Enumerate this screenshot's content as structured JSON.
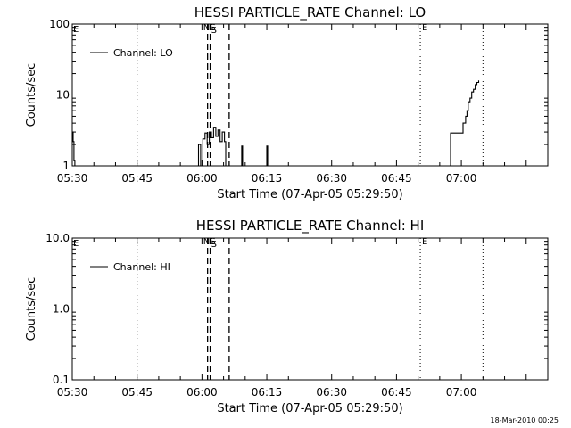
{
  "footer": {
    "timestamp": "18-Mar-2010 00:25"
  },
  "chart_data": [
    {
      "type": "line",
      "title": "HESSI PARTICLE_RATE Channel: LO",
      "xlabel": "Start Time (07-Apr-05 05:29:50)",
      "ylabel": "Counts/sec",
      "y_scale": "log",
      "xlim": [
        0,
        110
      ],
      "ylim": [
        1,
        100
      ],
      "x_ticks": [
        {
          "at": 0,
          "label": "05:30"
        },
        {
          "at": 15,
          "label": "05:45"
        },
        {
          "at": 30,
          "label": "06:00"
        },
        {
          "at": 45,
          "label": "06:15"
        },
        {
          "at": 60,
          "label": "06:30"
        },
        {
          "at": 75,
          "label": "06:45"
        },
        {
          "at": 90,
          "label": "07:00"
        }
      ],
      "y_ticks": [
        {
          "at": 1,
          "label": "1"
        },
        {
          "at": 10,
          "label": "10"
        },
        {
          "at": 100,
          "label": "100"
        }
      ],
      "legend": {
        "position": "top-left",
        "entries": [
          "Channel: LO"
        ]
      },
      "series": [
        {
          "name": "Channel: LO",
          "x": [
            0,
            0.2,
            0.4,
            0.6,
            29,
            29.2,
            29.7,
            30.2,
            30.7,
            31.2,
            31.7,
            32.2,
            32.7,
            33.2,
            33.7,
            34.2,
            34.7,
            35.2,
            35.5,
            39,
            39.2,
            39.4,
            44.8,
            45,
            45.2,
            87.4,
            87.5,
            87.6,
            88.1,
            89.1,
            90.3,
            90.4,
            90.7,
            91,
            91.3,
            91.6,
            92,
            92.4,
            92.8,
            93.2,
            93.6,
            94
          ],
          "y": [
            3,
            2.2,
            1.2,
            1,
            1,
            2,
            1,
            2.4,
            2.9,
            2,
            3,
            2.5,
            3.5,
            2.6,
            3.2,
            2.2,
            3,
            2.2,
            1,
            1,
            1.9,
            1,
            1,
            1.9,
            1,
            1,
            2.9,
            2.9,
            2.9,
            2.9,
            2.9,
            4,
            4,
            5,
            6,
            8,
            9,
            11,
            12,
            14,
            15,
            16
          ]
        }
      ],
      "vertical_markers": [
        {
          "x": 15,
          "style": "dotted"
        },
        {
          "x": 31.3,
          "style": "dashed",
          "label": "NS"
        },
        {
          "x": 31.9,
          "style": "dashed",
          "label": "S"
        },
        {
          "x": 36.3,
          "style": "dashed"
        },
        {
          "x": 80.5,
          "style": "dotted",
          "label": "E"
        },
        {
          "x": 95,
          "style": "dotted"
        }
      ],
      "corner_markers": [
        "E"
      ]
    },
    {
      "type": "line",
      "title": "HESSI PARTICLE_RATE Channel: HI",
      "xlabel": "Start Time (07-Apr-05 05:29:50)",
      "ylabel": "Counts/sec",
      "y_scale": "log",
      "xlim": [
        0,
        110
      ],
      "ylim": [
        0.1,
        10
      ],
      "x_ticks": [
        {
          "at": 0,
          "label": "05:30"
        },
        {
          "at": 15,
          "label": "05:45"
        },
        {
          "at": 30,
          "label": "06:00"
        },
        {
          "at": 45,
          "label": "06:15"
        },
        {
          "at": 60,
          "label": "06:30"
        },
        {
          "at": 75,
          "label": "06:45"
        },
        {
          "at": 90,
          "label": "07:00"
        }
      ],
      "y_ticks": [
        {
          "at": 0.1,
          "label": "0.1"
        },
        {
          "at": 1,
          "label": "1.0"
        },
        {
          "at": 10,
          "label": "10.0"
        }
      ],
      "legend": {
        "position": "top-left",
        "entries": [
          "Channel: HI"
        ]
      },
      "series": [
        {
          "name": "Channel: HI",
          "x": [],
          "y": []
        }
      ],
      "vertical_markers": [
        {
          "x": 15,
          "style": "dotted"
        },
        {
          "x": 31.3,
          "style": "dashed",
          "label": "NS"
        },
        {
          "x": 31.9,
          "style": "dashed",
          "label": "S"
        },
        {
          "x": 36.3,
          "style": "dashed"
        },
        {
          "x": 80.5,
          "style": "dotted",
          "label": "E"
        },
        {
          "x": 95,
          "style": "dotted"
        }
      ],
      "corner_markers": [
        "E"
      ]
    }
  ]
}
